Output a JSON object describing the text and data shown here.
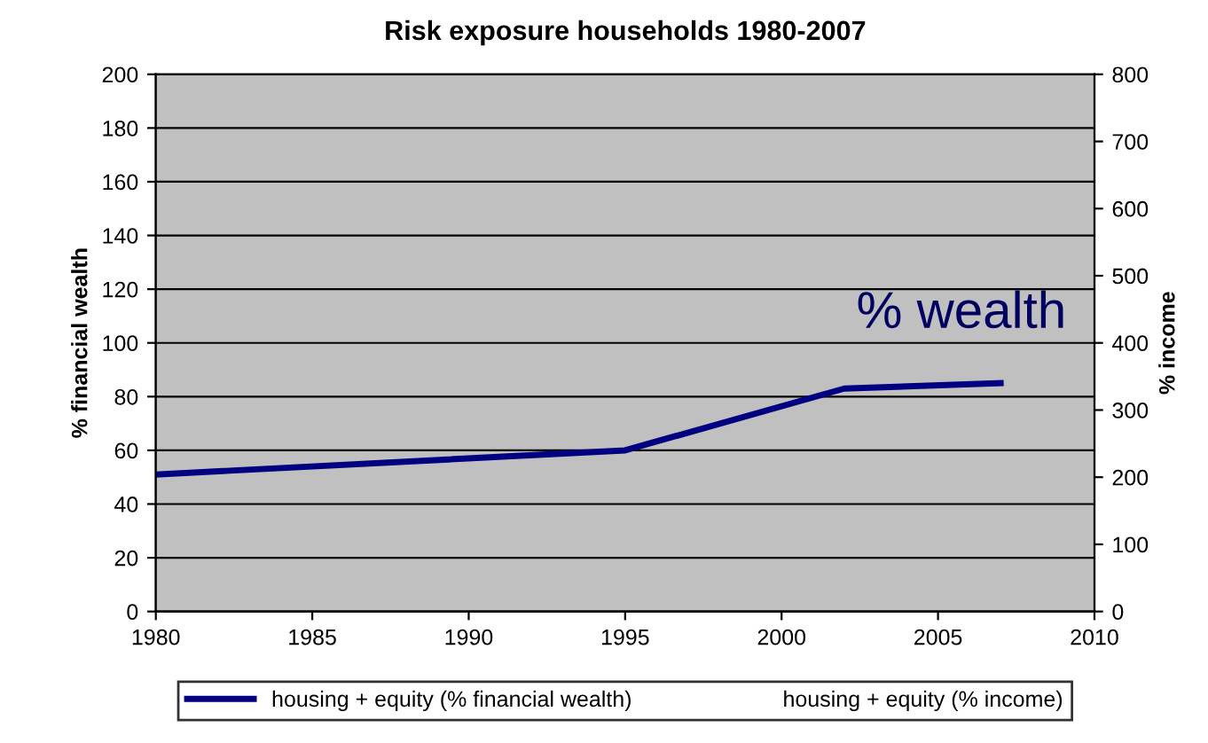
{
  "chart_data": {
    "type": "line",
    "title": "Risk exposure households 1980-2007",
    "ylabel": "% financial wealth",
    "y2label": "% income",
    "x": [
      1980,
      1995,
      2002,
      2007
    ],
    "series": [
      {
        "name": "housing + equity (% financial wealth)",
        "color": "#000080",
        "values": [
          51,
          60,
          83,
          85
        ]
      },
      {
        "name": "housing + equity (% income)",
        "values": [
          null,
          null,
          null,
          null
        ]
      }
    ],
    "annotations": [
      "% wealth"
    ],
    "xlim": [
      1980,
      2010
    ],
    "xticks": [
      1980,
      1985,
      1990,
      1995,
      2000,
      2005,
      2010
    ],
    "ylim": [
      0,
      200
    ],
    "yticks": [
      0,
      20,
      40,
      60,
      80,
      100,
      120,
      140,
      160,
      180,
      200
    ],
    "y2lim": [
      0,
      800
    ],
    "y2ticks": [
      0,
      100,
      200,
      300,
      400,
      500,
      600,
      700,
      800
    ],
    "grid": "y",
    "legend": "bottom",
    "marker": "none",
    "line_style": "solid"
  }
}
